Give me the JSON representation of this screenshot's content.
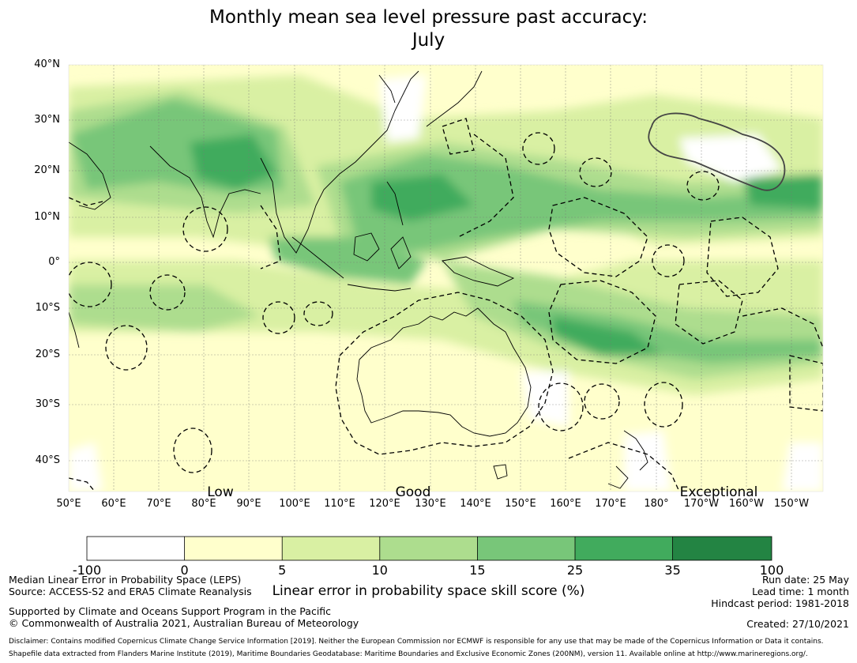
{
  "title": {
    "line1": "Monthly mean sea level pressure past accuracy:",
    "line2": "July"
  },
  "map": {
    "lat_labels": [
      "40°N",
      "30°N",
      "20°N",
      "10°N",
      "0°",
      "10°S",
      "20°S",
      "30°S",
      "40°S"
    ],
    "lon_labels": [
      "50°E",
      "60°E",
      "70°E",
      "80°E",
      "90°E",
      "100°E",
      "110°E",
      "120°E",
      "130°E",
      "140°E",
      "150°E",
      "160°E",
      "170°E",
      "180°",
      "170°W",
      "160°W",
      "150°W"
    ],
    "category_labels": [
      "Low",
      "Good",
      "Exceptional"
    ]
  },
  "colorbar": {
    "ticks": [
      "-100",
      "0",
      "5",
      "10",
      "15",
      "25",
      "35",
      "100"
    ],
    "colors": [
      "#ffffff",
      "#ffffcc",
      "#d9f0a3",
      "#addd8e",
      "#78c679",
      "#41ab5d",
      "#238443"
    ],
    "title": "Linear error in probability space skill score (%)"
  },
  "footer": {
    "left1": "Median Linear Error in Probability Space (LEPS)",
    "left2": "Source: ACCESS-S2 and ERA5 Climate Reanalysis",
    "left3": "Supported by Climate and Oceans Support Program in the Pacific",
    "left4": "© Commonwealth of Australia 2021, Australian Bureau of Meteorology",
    "right1": "Run date: 25 May",
    "right2": "Lead time: 1 month",
    "right3": "Hindcast period: 1981-2018",
    "right4": "Created: 27/10/2021",
    "disclaimer1": "Disclaimer: Contains modified Copernicus Climate Change Service Information [2019]. Neither the European Commission nor ECMWF is responsible for any use that may be made of the Copernicus Information or Data it contains.",
    "disclaimer2": "Shapefile data extracted from Flanders Marine Institute (2019), Maritime Boundaries Geodatabase: Maritime Boundaries and Exclusive Economic Zones (200NM), version 11. Available online at http://www.marineregions.org/."
  }
}
